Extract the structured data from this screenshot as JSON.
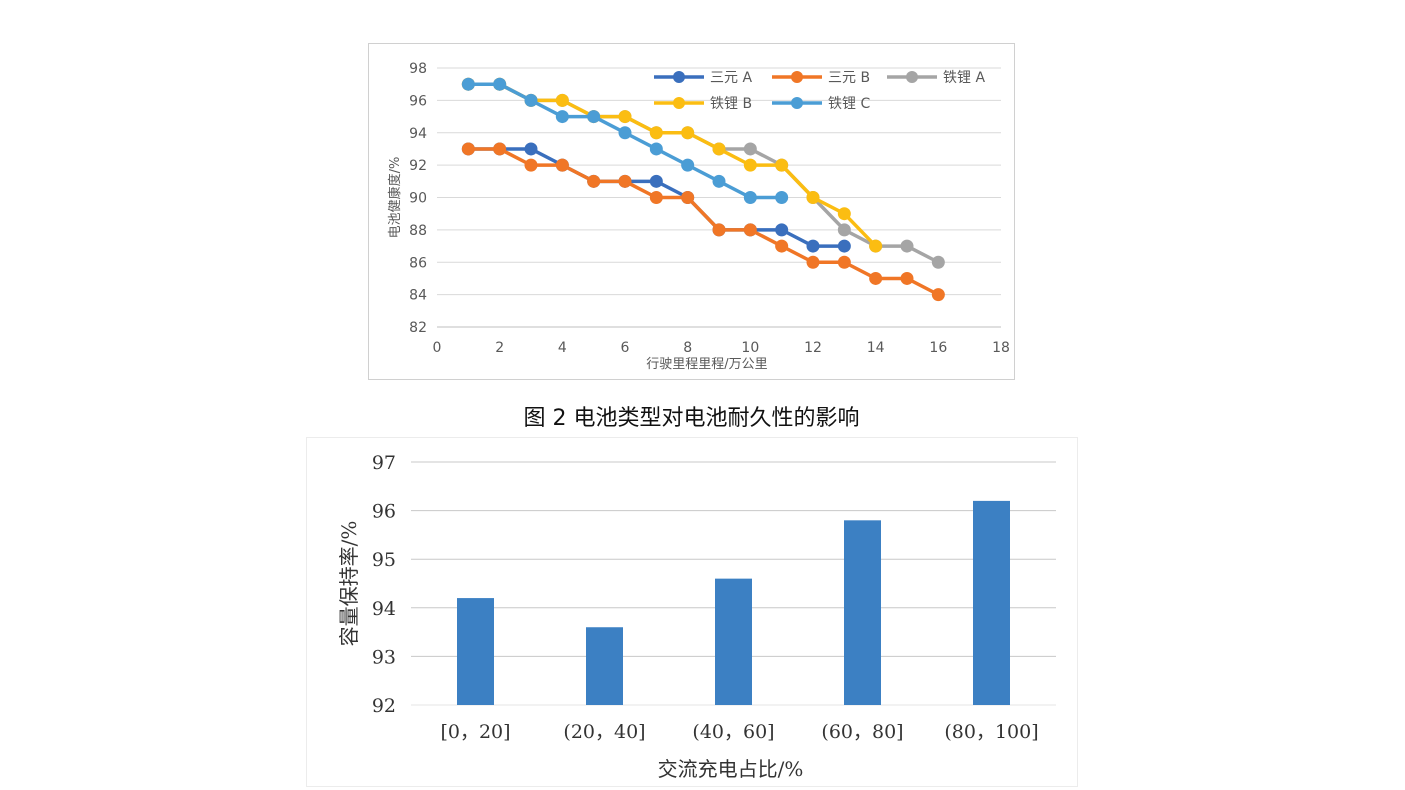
{
  "caption": "图 2 电池类型对电池耐久性的影响",
  "colors": {
    "三元 A": "#3a6fbd",
    "三元 B": "#f07626",
    "铁锂 A": "#a5a5a5",
    "铁锂 B": "#fbbd12",
    "铁锂 C": "#4b9dd5",
    "bar": "#3c80c3",
    "grid": "#d9d9d9"
  },
  "chart_data": [
    {
      "type": "line",
      "title": "",
      "xlabel": "行驶里程里程/万公里",
      "ylabel": "电池健康度/%",
      "xlim": [
        0,
        18
      ],
      "ylim": [
        82,
        98
      ],
      "x_ticks": [
        0,
        2,
        4,
        6,
        8,
        10,
        12,
        14,
        16,
        18
      ],
      "y_ticks": [
        82,
        84,
        86,
        88,
        90,
        92,
        94,
        96,
        98
      ],
      "grid": true,
      "legend": "top-right",
      "series": [
        {
          "name": "铁锂 A",
          "x": [
            1,
            2,
            3,
            4,
            5,
            6,
            7,
            8,
            9,
            10,
            11,
            12,
            13,
            14,
            15,
            16
          ],
          "values": [
            97,
            97,
            96,
            96,
            95,
            95,
            94,
            94,
            93,
            93,
            92,
            90,
            88,
            87,
            87,
            86
          ]
        },
        {
          "name": "铁锂 B",
          "x": [
            1,
            2,
            3,
            4,
            5,
            6,
            7,
            8,
            9,
            10,
            11,
            12,
            13,
            14
          ],
          "values": [
            97,
            97,
            96,
            96,
            95,
            95,
            94,
            94,
            93,
            92,
            92,
            90,
            89,
            87
          ]
        },
        {
          "name": "三元 A",
          "x": [
            1,
            2,
            3,
            4,
            5,
            6,
            7,
            8,
            9,
            10,
            11,
            12,
            13
          ],
          "values": [
            93,
            93,
            93,
            92,
            91,
            91,
            91,
            90,
            88,
            88,
            88,
            87,
            87
          ]
        },
        {
          "name": "三元 B",
          "x": [
            1,
            2,
            3,
            4,
            5,
            6,
            7,
            8,
            9,
            10,
            11,
            12,
            13,
            14,
            15,
            16
          ],
          "values": [
            93,
            93,
            92,
            92,
            91,
            91,
            90,
            90,
            88,
            88,
            87,
            86,
            86,
            85,
            85,
            84
          ]
        },
        {
          "name": "铁锂 C",
          "x": [
            1,
            2,
            3,
            4,
            5,
            6,
            7,
            8,
            9,
            10,
            11
          ],
          "values": [
            97,
            97,
            96,
            95,
            95,
            94,
            93,
            92,
            91,
            90,
            90
          ]
        }
      ],
      "legend_order": [
        "三元 A",
        "三元 B",
        "铁锂 A",
        "铁锂 B",
        "铁锂 C"
      ]
    },
    {
      "type": "bar",
      "title": "",
      "xlabel": "交流充电占比/%",
      "ylabel": "容量保持率/%",
      "categories": [
        "[0，20]",
        "(20，40]",
        "(40，60]",
        "(60，80]",
        "(80，100]"
      ],
      "values": [
        94.2,
        93.6,
        94.6,
        95.8,
        96.2
      ],
      "ylim": [
        92,
        97
      ],
      "y_ticks": [
        92,
        93,
        94,
        95,
        96,
        97
      ],
      "grid": true
    }
  ]
}
